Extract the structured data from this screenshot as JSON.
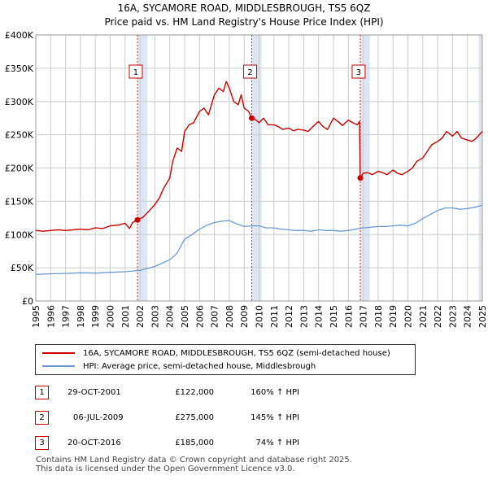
{
  "title_line1": "16A, SYCAMORE ROAD, MIDDLESBROUGH, TS5 6QZ",
  "title_line2": "Price paid vs. HM Land Registry's House Price Index (HPI)",
  "colors": {
    "property": "#cc0000",
    "hpi": "#6b9bd1",
    "shade": "#dde6f3",
    "grid": "#cccccc"
  },
  "legend": {
    "property_label": "16A, SYCAMORE ROAD, MIDDLESBROUGH, TS5 6QZ (semi-detached house)",
    "hpi_label": "HPI: Average price, semi-detached house, Middlesbrough"
  },
  "transactions": [
    {
      "num": "1",
      "date": "29-OCT-2001",
      "price": "£122,000",
      "hpi": "160% ↑ HPI"
    },
    {
      "num": "2",
      "date": "06-JUL-2009",
      "price": "£275,000",
      "hpi": "145% ↑ HPI"
    },
    {
      "num": "3",
      "date": "20-OCT-2016",
      "price": "£185,000",
      "hpi": "74% ↑ HPI"
    }
  ],
  "footer_line1": "Contains HM Land Registry data © Crown copyright and database right 2025.",
  "footer_line2": "This data is licensed under the Open Government Licence v3.0.",
  "chart_data": {
    "type": "line",
    "title": "16A, SYCAMORE ROAD, MIDDLESBROUGH, TS5 6QZ — Price paid vs. HM Land Registry's House Price Index (HPI)",
    "xlim": [
      1995,
      2025
    ],
    "ylim": [
      0,
      400000
    ],
    "x_ticks": [
      1995,
      1996,
      1997,
      1998,
      1999,
      2000,
      2001,
      2002,
      2003,
      2004,
      2005,
      2006,
      2007,
      2008,
      2009,
      2010,
      2011,
      2012,
      2013,
      2014,
      2015,
      2016,
      2017,
      2018,
      2019,
      2020,
      2021,
      2022,
      2023,
      2024,
      2025
    ],
    "y_ticks": [
      {
        "value": 0,
        "label": "£0"
      },
      {
        "value": 50000,
        "label": "£50K"
      },
      {
        "value": 100000,
        "label": "£100K"
      },
      {
        "value": 150000,
        "label": "£150K"
      },
      {
        "value": 200000,
        "label": "£200K"
      },
      {
        "value": 250000,
        "label": "£250K"
      },
      {
        "value": 300000,
        "label": "£300K"
      },
      {
        "value": 350000,
        "label": "£350K"
      },
      {
        "value": 400000,
        "label": "£400K"
      }
    ],
    "shaded_periods": [
      [
        2001.83,
        2002.5
      ],
      [
        2009.51,
        2010.17
      ],
      [
        2016.8,
        2017.45
      ],
      [
        2024.75,
        2025.0
      ]
    ],
    "sales": [
      {
        "label": "1",
        "x": 2001.83,
        "y": 122000
      },
      {
        "label": "2",
        "x": 2009.51,
        "y": 275000
      },
      {
        "label": "3",
        "x": 2016.8,
        "y": 185000
      }
    ],
    "series": [
      {
        "name": "16A, SYCAMORE ROAD, MIDDLESBROUGH, TS5 6QZ (semi-detached house)",
        "x": [
          1995,
          1995.5,
          1996,
          1996.5,
          1997,
          1997.5,
          1998,
          1998.5,
          1999,
          1999.5,
          2000,
          2000.5,
          2001,
          2001.3,
          2001.5,
          2001.83,
          2002.2,
          2002.5,
          2003,
          2003.3,
          2003.6,
          2004,
          2004.2,
          2004.5,
          2004.8,
          2005,
          2005.3,
          2005.6,
          2006,
          2006.3,
          2006.6,
          2007,
          2007.3,
          2007.6,
          2007.8,
          2008,
          2008.3,
          2008.6,
          2008.8,
          2009,
          2009.3,
          2009.51,
          2009.8,
          2010,
          2010.3,
          2010.6,
          2011,
          2011.3,
          2011.6,
          2012,
          2012.3,
          2012.6,
          2013,
          2013.3,
          2013.6,
          2014,
          2014.3,
          2014.6,
          2015,
          2015.3,
          2015.6,
          2016,
          2016.3,
          2016.6,
          2016.75,
          2016.8,
          2017,
          2017.3,
          2017.6,
          2018,
          2018.3,
          2018.6,
          2019,
          2019.3,
          2019.6,
          2020,
          2020.3,
          2020.6,
          2021,
          2021.3,
          2021.6,
          2022,
          2022.3,
          2022.6,
          2023,
          2023.3,
          2023.6,
          2024,
          2024.3,
          2024.6,
          2025
        ],
        "values": [
          106000,
          105000,
          106000,
          107000,
          106000,
          107000,
          108000,
          107000,
          110000,
          109000,
          113000,
          114000,
          117000,
          109000,
          118000,
          122000,
          126000,
          133000,
          145000,
          155000,
          170000,
          185000,
          210000,
          230000,
          225000,
          255000,
          265000,
          268000,
          285000,
          290000,
          280000,
          310000,
          320000,
          315000,
          330000,
          320000,
          300000,
          295000,
          310000,
          290000,
          285000,
          275000,
          272000,
          268000,
          275000,
          265000,
          265000,
          262000,
          258000,
          260000,
          256000,
          258000,
          257000,
          255000,
          262000,
          270000,
          262000,
          258000,
          275000,
          270000,
          264000,
          272000,
          268000,
          265000,
          270000,
          185000,
          192000,
          193000,
          190000,
          195000,
          193000,
          190000,
          197000,
          192000,
          190000,
          195000,
          200000,
          210000,
          215000,
          225000,
          235000,
          240000,
          245000,
          255000,
          248000,
          255000,
          245000,
          242000,
          240000,
          245000,
          255000
        ],
        "color_key": "property"
      },
      {
        "name": "HPI: Average price, semi-detached house, Middlesbrough",
        "x": [
          1995,
          1996,
          1997,
          1998,
          1999,
          2000,
          2001,
          2002,
          2003,
          2004,
          2004.5,
          2005,
          2005.5,
          2006,
          2006.5,
          2007,
          2007.5,
          2008,
          2008.5,
          2009,
          2009.5,
          2010,
          2010.5,
          2011,
          2011.5,
          2012,
          2012.5,
          2013,
          2013.5,
          2014,
          2014.5,
          2015,
          2015.5,
          2016,
          2016.5,
          2017,
          2017.5,
          2018,
          2018.5,
          2019,
          2019.5,
          2020,
          2020.5,
          2021,
          2021.5,
          2022,
          2022.5,
          2023,
          2023.5,
          2024,
          2024.5,
          2025
        ],
        "values": [
          40000,
          41000,
          41500,
          42500,
          42000,
          43000,
          44000,
          46000,
          52000,
          62000,
          72000,
          93000,
          100000,
          108000,
          114000,
          118000,
          120000,
          121000,
          116000,
          112000,
          113000,
          113000,
          110000,
          110000,
          108000,
          107000,
          106000,
          106000,
          105000,
          107000,
          106000,
          106000,
          105000,
          106000,
          108000,
          110000,
          111000,
          112000,
          112000,
          113000,
          114000,
          113000,
          117000,
          124000,
          130000,
          136000,
          140000,
          140000,
          138000,
          139000,
          141000,
          144000
        ],
        "color_key": "hpi"
      }
    ]
  }
}
